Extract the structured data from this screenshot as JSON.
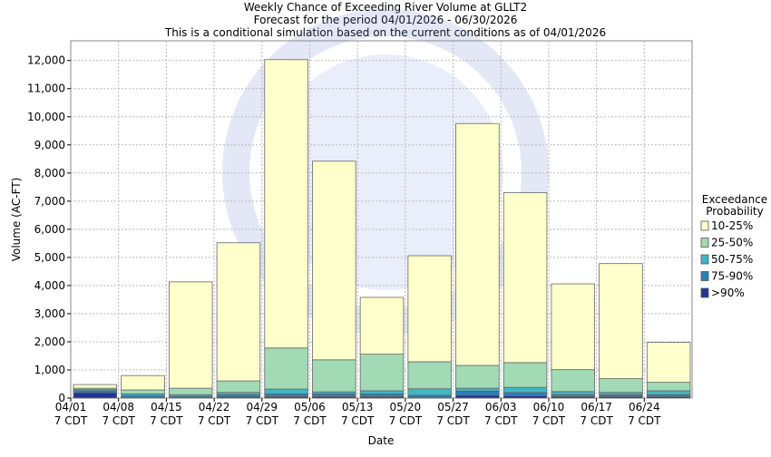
{
  "chart_data": {
    "type": "stacked_bar",
    "title": "Weekly Chance of Exceeding River Volume at GLLT2",
    "subtitle": "Forecast for the period 04/01/2026 - 06/30/2026",
    "note": "This is a conditional simulation based on the current conditions as of 04/01/2026",
    "x_label": "Date",
    "y_label": "Volume (AC-FT)",
    "legend_title": [
      "Exceedance",
      "Probability"
    ],
    "legend_position": "right",
    "grid": true,
    "categories": [
      "04/01 7 CDT",
      "04/08 7 CDT",
      "04/15 7 CDT",
      "04/22 7 CDT",
      "04/29 7 CDT",
      "05/06 7 CDT",
      "05/13 7 CDT",
      "05/20 7 CDT",
      "05/27 7 CDT",
      "06/03 7 CDT",
      "06/10 7 CDT",
      "06/17 7 CDT",
      "06/24 7 CDT"
    ],
    "series": [
      {
        "name": "10-25%",
        "color": "#ffffcc",
        "values": [
          130,
          510,
          3780,
          4910,
          10250,
          7060,
          2020,
          3770,
          8600,
          6040,
          3050,
          4090,
          1420
        ]
      },
      {
        "name": "25-50%",
        "color": "#a1dab4",
        "values": [
          50,
          140,
          230,
          410,
          1460,
          1140,
          1300,
          960,
          810,
          880,
          780,
          490,
          300
        ]
      },
      {
        "name": "50-75%",
        "color": "#41b6c4",
        "values": [
          40,
          70,
          60,
          80,
          170,
          70,
          110,
          230,
          100,
          180,
          110,
          80,
          140
        ]
      },
      {
        "name": "75-90%",
        "color": "#2c7fb8",
        "values": [
          70,
          60,
          40,
          80,
          100,
          100,
          100,
          70,
          150,
          120,
          70,
          70,
          70
        ]
      },
      {
        "name": ">90%",
        "color": "#253494",
        "values": [
          190,
          20,
          20,
          40,
          50,
          50,
          50,
          30,
          100,
          80,
          50,
          50,
          50
        ]
      }
    ],
    "ylim": [
      0,
      12700
    ],
    "yticks": [
      0,
      {
        "value": 1000,
        "label": "1,000"
      },
      {
        "value": 2000,
        "label": "2,000"
      },
      {
        "value": 3000,
        "label": "3,000"
      },
      {
        "value": 4000,
        "label": "4,000"
      },
      {
        "value": 5000,
        "label": "5,000"
      },
      {
        "value": 6000,
        "label": "6,000"
      },
      {
        "value": 7000,
        "label": "7,000"
      },
      {
        "value": 8000,
        "label": "8,000"
      },
      {
        "value": 9000,
        "label": "9,000"
      },
      {
        "value": 10000,
        "label": "10,000"
      },
      {
        "value": 11000,
        "label": "11,000"
      },
      {
        "value": 12000,
        "label": "12,000"
      }
    ]
  }
}
